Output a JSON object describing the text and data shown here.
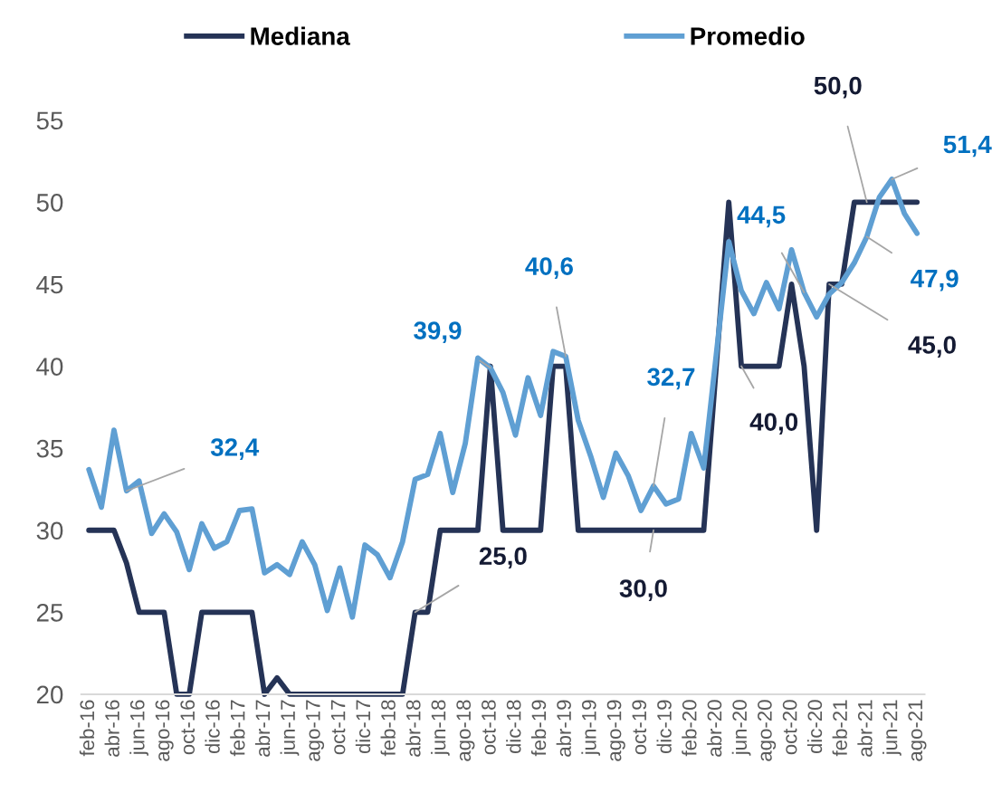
{
  "chart_data": {
    "type": "line",
    "categories": [
      "feb-16",
      null,
      "abr-16",
      null,
      "jun-16",
      null,
      "ago-16",
      null,
      "oct-16",
      null,
      "dic-16",
      null,
      "feb-17",
      null,
      "abr-17",
      null,
      "jun-17",
      null,
      "ago-17",
      null,
      "oct-17",
      null,
      "dic-17",
      null,
      "feb-18",
      null,
      "abr-18",
      null,
      "jun-18",
      null,
      "ago-18",
      null,
      "oct-18",
      null,
      "dic-18",
      null,
      "feb-19",
      null,
      "abr-19",
      null,
      "jun-19",
      null,
      "ago-19",
      null,
      "oct-19",
      null,
      "dic-19",
      null,
      "feb-20",
      null,
      "abr-20",
      null,
      "jun-20",
      null,
      "ago-20",
      null,
      "oct-20",
      null,
      "dic-20",
      null,
      "feb-21",
      null,
      "abr-21",
      null,
      "jun-21",
      null,
      "ago-21"
    ],
    "series": [
      {
        "name": "Mediana",
        "color": "#253356",
        "values": [
          30,
          30,
          30,
          28,
          25,
          25,
          25,
          20,
          20,
          25,
          25,
          25,
          25,
          25,
          20,
          21,
          20,
          20,
          20,
          20,
          20,
          20,
          20,
          20,
          20,
          20,
          25,
          25,
          30,
          30,
          30,
          30,
          40,
          30,
          30,
          30,
          30,
          40,
          40,
          30,
          30,
          30,
          30,
          30,
          30,
          30,
          30,
          30,
          30,
          30,
          40,
          50,
          40,
          40,
          40,
          40,
          45,
          40,
          30,
          45,
          45,
          50,
          50,
          50,
          50,
          50,
          50
        ],
        "value_labels": [
          null,
          null,
          null,
          null,
          null,
          null,
          null,
          null,
          null,
          null,
          null,
          null,
          null,
          null,
          null,
          null,
          null,
          null,
          null,
          null,
          null,
          null,
          null,
          null,
          null,
          null,
          "25,0",
          null,
          null,
          null,
          null,
          null,
          null,
          null,
          null,
          null,
          null,
          null,
          null,
          null,
          null,
          null,
          null,
          null,
          null,
          "30,0",
          null,
          null,
          null,
          null,
          null,
          null,
          "40,0",
          null,
          null,
          null,
          null,
          null,
          null,
          "45,0",
          null,
          null,
          "50,0",
          null,
          null,
          null,
          null
        ]
      },
      {
        "name": "Promedio",
        "color": "#5f9fd3",
        "values": [
          33.7,
          31.4,
          36.1,
          32.4,
          33.0,
          29.8,
          31.0,
          29.9,
          27.6,
          30.4,
          28.9,
          29.3,
          31.2,
          31.3,
          27.4,
          27.9,
          27.3,
          29.3,
          27.9,
          25.1,
          27.7,
          24.7,
          29.1,
          28.5,
          27.1,
          29.3,
          33.1,
          33.4,
          35.9,
          32.3,
          35.3,
          40.5,
          39.9,
          38.4,
          35.8,
          39.3,
          37.0,
          40.9,
          40.6,
          36.7,
          34.5,
          32.0,
          34.7,
          33.3,
          31.2,
          32.7,
          31.6,
          31.9,
          35.9,
          33.8,
          40.7,
          47.6,
          44.6,
          43.2,
          45.1,
          43.5,
          47.1,
          44.5,
          43.0,
          44.4,
          45.1,
          46.3,
          47.9,
          50.3,
          51.4,
          49.3,
          48.1
        ],
        "value_labels": [
          null,
          null,
          null,
          "32,4",
          null,
          null,
          null,
          null,
          null,
          null,
          null,
          null,
          null,
          null,
          null,
          null,
          null,
          null,
          null,
          null,
          null,
          null,
          null,
          null,
          null,
          null,
          null,
          null,
          null,
          null,
          null,
          null,
          "39,9",
          null,
          null,
          null,
          null,
          null,
          "40,6",
          null,
          null,
          null,
          null,
          null,
          null,
          "32,7",
          null,
          null,
          null,
          null,
          null,
          null,
          null,
          null,
          null,
          null,
          null,
          "44,5",
          null,
          null,
          null,
          null,
          "47,9",
          null,
          "51,4",
          null,
          null
        ]
      }
    ],
    "ylim": [
      20,
      55
    ],
    "yticks": [
      20,
      25,
      30,
      35,
      40,
      45,
      50,
      55
    ],
    "legend": "top",
    "grid": false,
    "marker": "none",
    "line_style": "solid"
  }
}
